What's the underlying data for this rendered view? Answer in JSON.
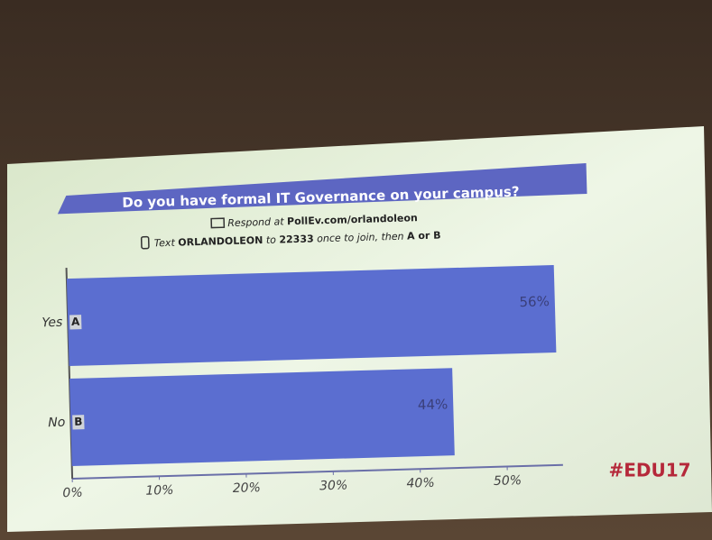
{
  "chart_data": {
    "type": "bar",
    "orientation": "horizontal",
    "title": "Do you have formal IT Governance on your campus?",
    "respond_line": [
      "Respond at",
      "PollEv.com/orlandoleon"
    ],
    "text_line": [
      "Text",
      "ORLANDOLEON",
      "to",
      "22333",
      "once to join, then",
      "A or B"
    ],
    "categories": [
      "Yes",
      "No"
    ],
    "letters": [
      "A",
      "B"
    ],
    "values": [
      56,
      44
    ],
    "value_labels": [
      "56%",
      "44%"
    ],
    "color": "#5b6ed0",
    "xlim": [
      0,
      56
    ],
    "xticks": [
      {
        "value": 0,
        "label": "0%"
      },
      {
        "value": 10,
        "label": "10%"
      },
      {
        "value": 20,
        "label": "20%"
      },
      {
        "value": 30,
        "label": "30%"
      },
      {
        "value": 40,
        "label": "40%"
      },
      {
        "value": 50,
        "label": "50%"
      }
    ],
    "hashtag": "#EDU17"
  }
}
